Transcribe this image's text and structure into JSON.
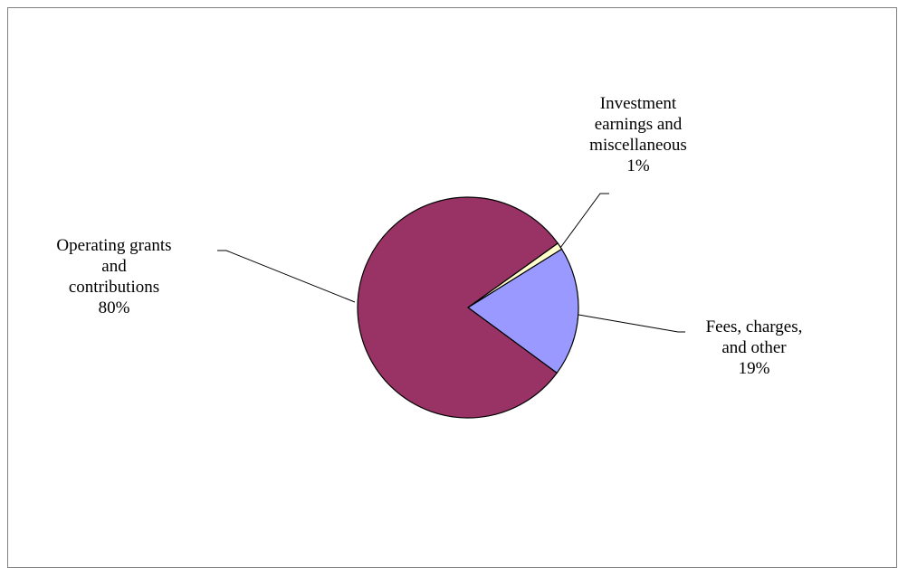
{
  "chart_data": {
    "type": "pie",
    "title": "",
    "slices": [
      {
        "label_lines": [
          "Fees, charges,",
          "and other"
        ],
        "percent_label": "19%",
        "value": 19,
        "color": "#9999ff"
      },
      {
        "label_lines": [
          "Operating grants",
          "and",
          "contributions"
        ],
        "percent_label": "80%",
        "value": 80,
        "color": "#993366"
      },
      {
        "label_lines": [
          "Investment",
          "earnings and",
          "miscellaneous"
        ],
        "percent_label": "1%",
        "value": 1,
        "color": "#ffffcc"
      }
    ],
    "legend": "none",
    "labels_placement": "outside-with-leader-lines"
  }
}
